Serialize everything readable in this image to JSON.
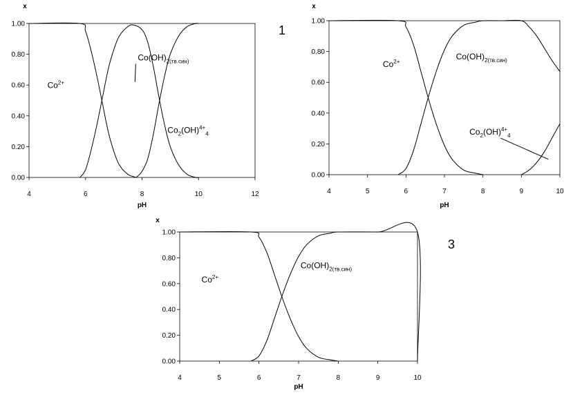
{
  "panel_labels": [
    "1",
    "",
    "3"
  ],
  "chart_data": [
    {
      "type": "line",
      "panel": "1",
      "xlabel": "pH",
      "ylabel": "x",
      "xlim": [
        4,
        12
      ],
      "ylim": [
        0,
        1
      ],
      "xticks": [
        "4",
        "6",
        "8",
        "10",
        "12"
      ],
      "yticks": [
        "0.00",
        "0.20",
        "0.40",
        "0.60",
        "0.80",
        "1.00"
      ],
      "grid": false,
      "series": [
        {
          "name": "Co2+",
          "x": [
            4,
            5.8,
            6.0,
            6.2,
            6.4,
            6.6,
            6.8,
            7.0,
            7.2,
            7.5,
            7.8
          ],
          "values": [
            1.0,
            1.0,
            0.95,
            0.82,
            0.66,
            0.48,
            0.3,
            0.17,
            0.08,
            0.02,
            0.0
          ]
        },
        {
          "name": "Co(OH)2(тв.син)",
          "x": [
            5.8,
            6.0,
            6.2,
            6.4,
            6.6,
            6.8,
            7.0,
            7.2,
            7.5,
            7.7,
            8.0,
            8.2,
            8.4,
            8.6,
            8.8,
            9.0,
            9.3,
            9.6,
            9.9,
            10.0
          ],
          "values": [
            0.0,
            0.05,
            0.18,
            0.34,
            0.52,
            0.7,
            0.83,
            0.92,
            0.98,
            0.99,
            0.96,
            0.88,
            0.72,
            0.52,
            0.34,
            0.2,
            0.08,
            0.02,
            0.0,
            0.0
          ]
        },
        {
          "name": "Co2(OH)4+4",
          "x": [
            7.8,
            8.0,
            8.2,
            8.4,
            8.6,
            8.8,
            9.0,
            9.3,
            9.6,
            9.9,
            10.0
          ],
          "values": [
            0.0,
            0.04,
            0.12,
            0.28,
            0.48,
            0.66,
            0.8,
            0.92,
            0.98,
            1.0,
            1.0
          ]
        }
      ],
      "annotations": [
        {
          "main": "Co",
          "sup": "2+",
          "x": 4.65,
          "y": 0.58
        },
        {
          "main": "Co(OH)",
          "sub": "2(тв.син)",
          "x": 7.85,
          "y": 0.76,
          "leader_to": [
            7.75,
            0.62
          ]
        },
        {
          "main": "Co",
          "sub": "2",
          "main2": "(OH)",
          "sup": "4+",
          "sub2": "4",
          "x": 8.9,
          "y": 0.29
        }
      ]
    },
    {
      "type": "line",
      "panel": "",
      "xlabel": "pH",
      "ylabel": "x",
      "xlim": [
        4,
        10
      ],
      "ylim": [
        0,
        1
      ],
      "xticks": [
        "4",
        "5",
        "6",
        "7",
        "8",
        "9",
        "10"
      ],
      "yticks": [
        "0.00",
        "0.20",
        "0.40",
        "0.60",
        "0.80",
        "1.00"
      ],
      "grid": false,
      "series": [
        {
          "name": "Co2+",
          "x": [
            4,
            5.8,
            6.0,
            6.2,
            6.4,
            6.6,
            6.8,
            7.0,
            7.2,
            7.5,
            7.8,
            8.0
          ],
          "values": [
            1.0,
            1.0,
            0.96,
            0.84,
            0.66,
            0.48,
            0.32,
            0.19,
            0.1,
            0.03,
            0.01,
            0.0
          ]
        },
        {
          "name": "Co(OH)2(тв.син)",
          "x": [
            5.8,
            6.0,
            6.2,
            6.4,
            6.6,
            6.8,
            7.0,
            7.2,
            7.5,
            7.8,
            8.0,
            8.5,
            9.0,
            9.2,
            9.4,
            9.6,
            9.8,
            10.0
          ],
          "values": [
            0.0,
            0.04,
            0.16,
            0.34,
            0.52,
            0.68,
            0.81,
            0.9,
            0.97,
            0.99,
            1.0,
            1.0,
            1.0,
            0.96,
            0.9,
            0.82,
            0.74,
            0.67
          ]
        },
        {
          "name": "Co2(OH)4+4",
          "x": [
            9.0,
            9.2,
            9.4,
            9.6,
            9.8,
            10.0
          ],
          "values": [
            0.0,
            0.03,
            0.08,
            0.15,
            0.24,
            0.33
          ]
        }
      ],
      "annotations": [
        {
          "main": "Co",
          "sup": "2+",
          "x": 5.4,
          "y": 0.7
        },
        {
          "main": "Co(OH)",
          "sub": "2(тв.син)",
          "x": 7.3,
          "y": 0.75
        },
        {
          "main": "Co",
          "sub": "2",
          "main2": "(OH)",
          "sup": "4+",
          "sub2": "4",
          "x": 7.65,
          "y": 0.26,
          "leader_to": [
            9.7,
            0.1
          ]
        }
      ]
    },
    {
      "type": "line",
      "panel": "3",
      "xlabel": "pH",
      "ylabel": "x",
      "xlim": [
        4,
        10
      ],
      "ylim": [
        0,
        1
      ],
      "xticks": [
        "4",
        "5",
        "6",
        "7",
        "8",
        "9",
        "10"
      ],
      "yticks": [
        "0.00",
        "0.20",
        "0.40",
        "0.60",
        "0.80",
        "1.00"
      ],
      "grid": false,
      "series": [
        {
          "name": "Co2+",
          "x": [
            4,
            5.8,
            6.0,
            6.2,
            6.4,
            6.6,
            6.8,
            7.0,
            7.2,
            7.5,
            7.8,
            8.0
          ],
          "values": [
            1.0,
            1.0,
            0.96,
            0.84,
            0.66,
            0.48,
            0.32,
            0.19,
            0.1,
            0.03,
            0.01,
            0.0
          ]
        },
        {
          "name": "Co(OH)2(тв.син)",
          "x": [
            5.8,
            6.0,
            6.2,
            6.4,
            6.6,
            6.8,
            7.0,
            7.2,
            7.5,
            7.8,
            8.0,
            9.0,
            10.0,
            10.0
          ],
          "values": [
            0.0,
            0.04,
            0.16,
            0.34,
            0.52,
            0.68,
            0.81,
            0.9,
            0.97,
            0.99,
            1.0,
            1.0,
            1.0,
            0.0
          ]
        }
      ],
      "annotations": [
        {
          "main": "Co",
          "sup": "2+",
          "x": 4.55,
          "y": 0.61
        },
        {
          "main": "Co(OH)",
          "sub": "2(тв.син)",
          "x": 7.05,
          "y": 0.72
        }
      ]
    }
  ]
}
